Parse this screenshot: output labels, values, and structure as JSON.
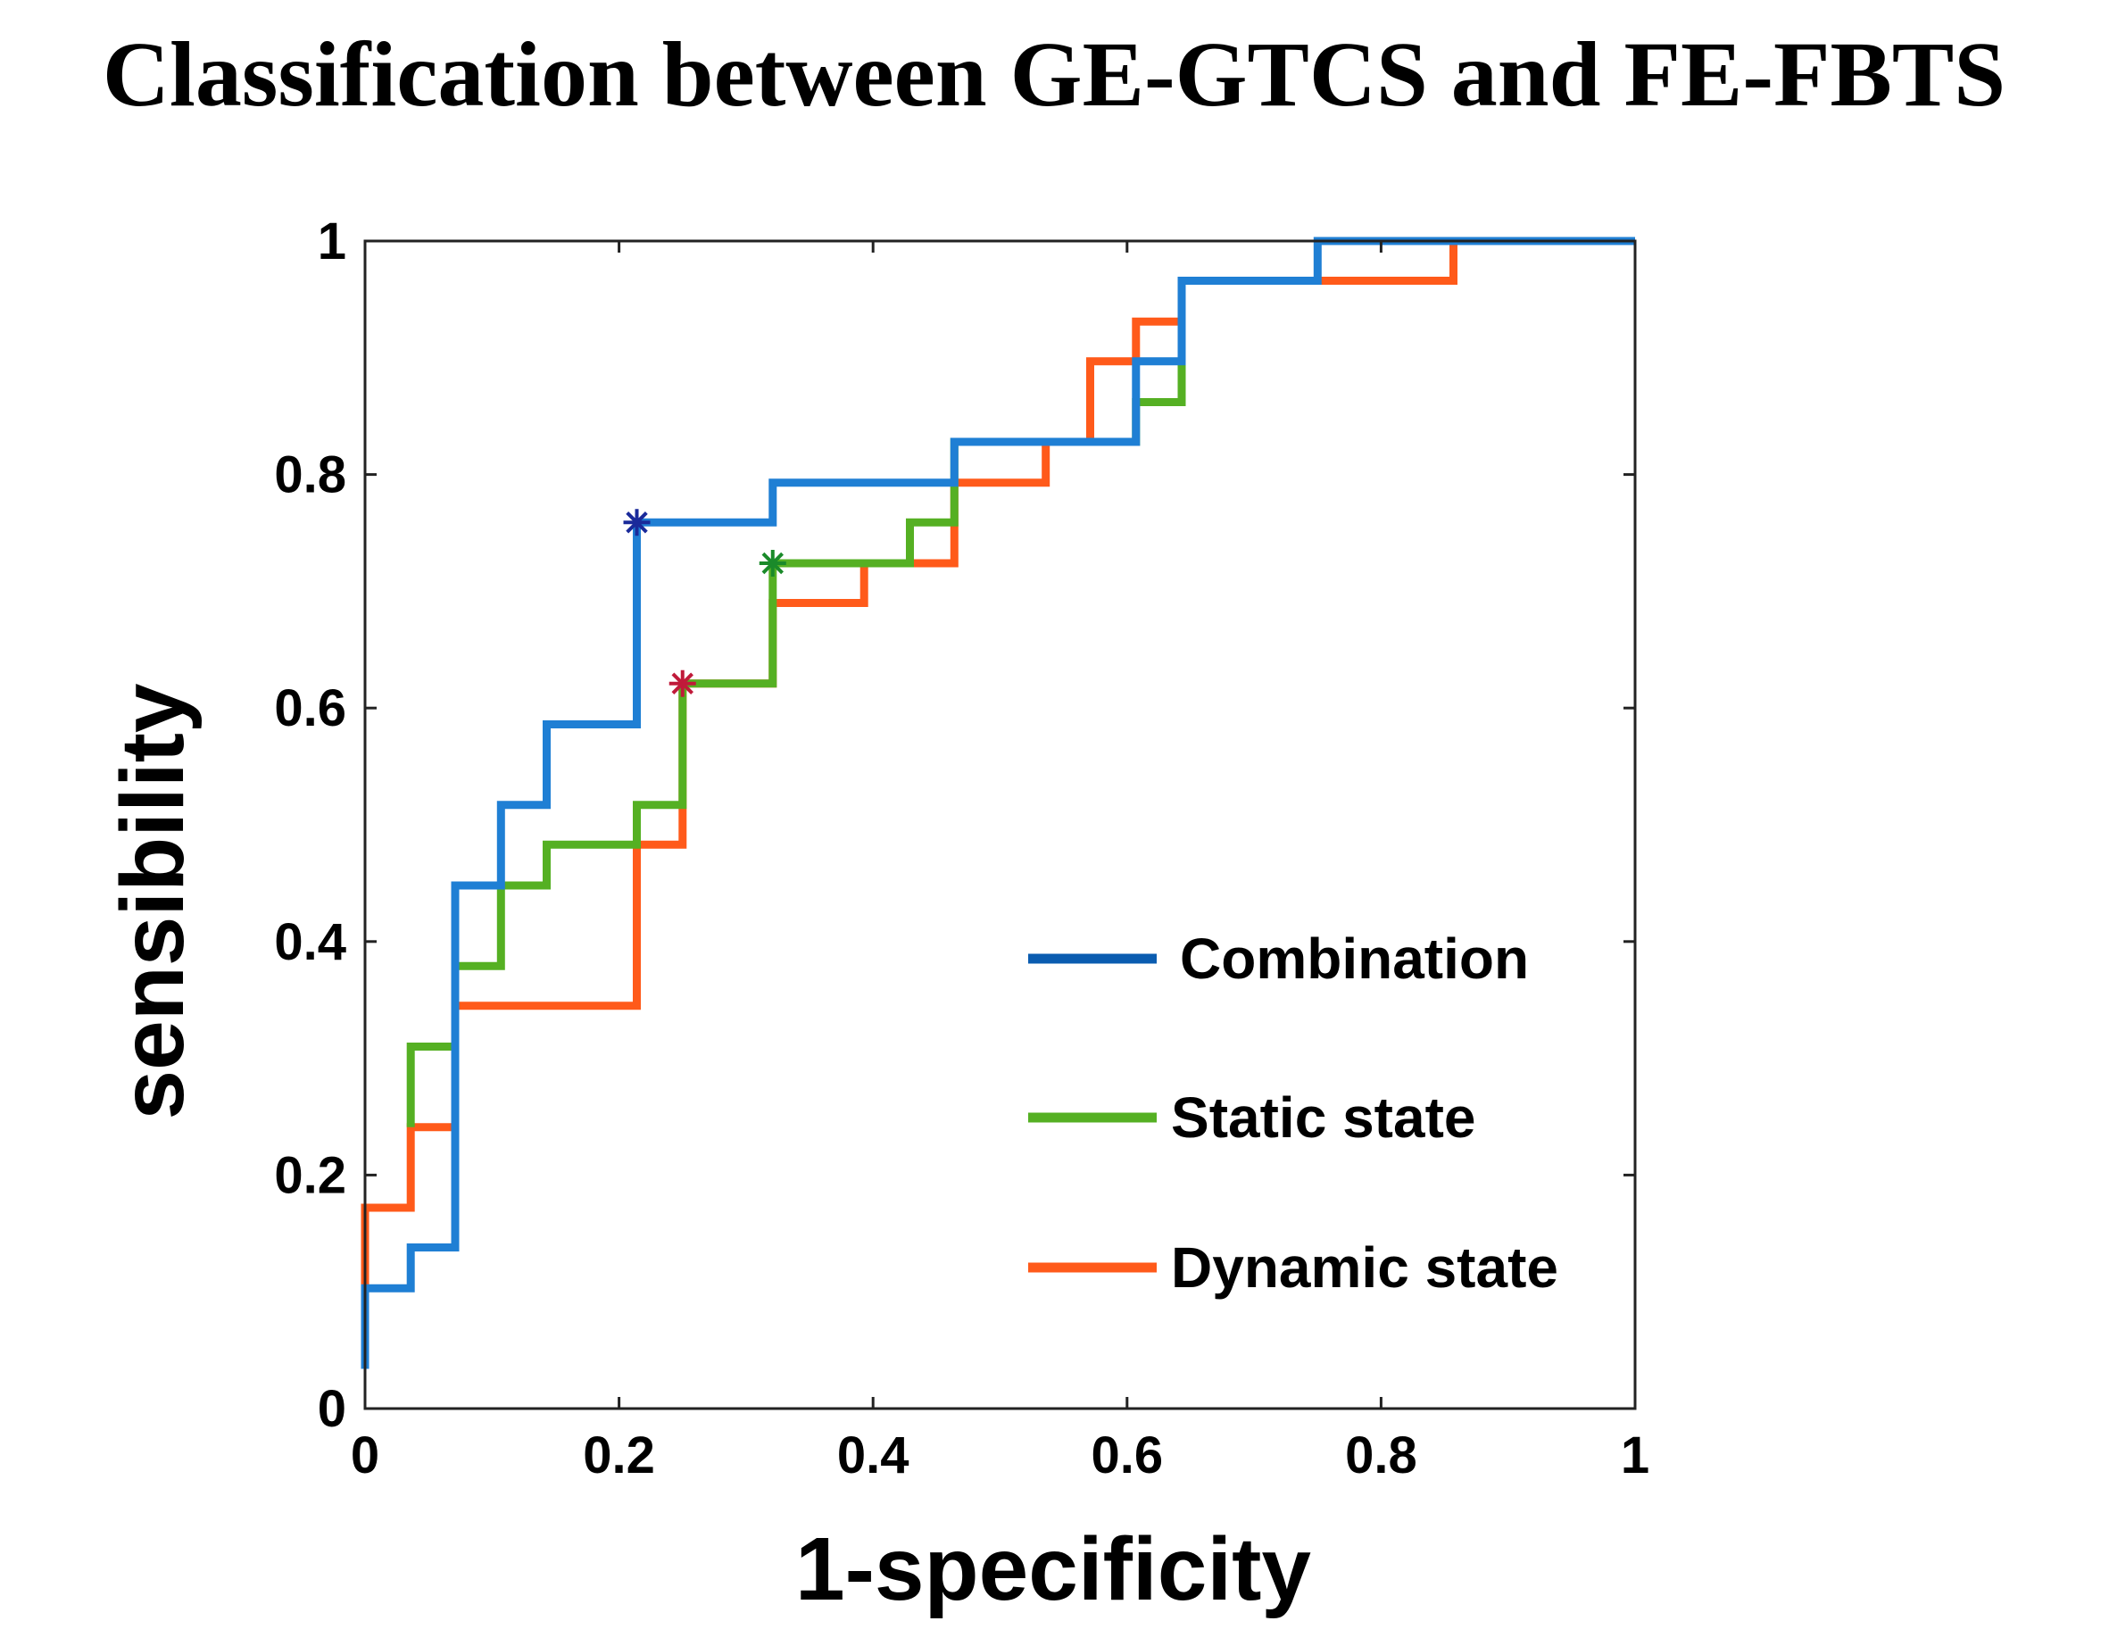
{
  "chart_data": {
    "type": "line",
    "title": "Classification between GE-GTCS and FE-FBTS",
    "xlabel": "1-specificity",
    "ylabel": "sensibility",
    "xlim": [
      0,
      1
    ],
    "ylim": [
      0,
      1
    ],
    "xticks": [
      0,
      0.2,
      0.4,
      0.6,
      0.8,
      1
    ],
    "yticks": [
      0,
      0.2,
      0.4,
      0.6,
      0.8,
      1
    ],
    "xtick_labels": [
      "0",
      "0.2",
      "0.4",
      "0.6",
      "0.8",
      "1"
    ],
    "ytick_labels": [
      "0",
      "0.2",
      "0.4",
      "0.6",
      "0.8",
      "1"
    ],
    "grid": false,
    "legend_position": "bottom-right",
    "series": [
      {
        "name": "Combination",
        "color": "#1f7fd4",
        "legend_color": "#0a5cb0",
        "marker_color": "#1a2a9a",
        "operating_point": [
          0.214,
          0.759
        ],
        "x": [
          0,
          0,
          0.036,
          0.036,
          0.071,
          0.071,
          0.107,
          0.107,
          0.143,
          0.143,
          0.214,
          0.214,
          0.321,
          0.321,
          0.464,
          0.464,
          0.607,
          0.607,
          0.643,
          0.643,
          0.75,
          0.75,
          1
        ],
        "y": [
          0.034,
          0.103,
          0.103,
          0.138,
          0.138,
          0.448,
          0.448,
          0.517,
          0.517,
          0.586,
          0.586,
          0.759,
          0.759,
          0.793,
          0.793,
          0.828,
          0.828,
          0.897,
          0.897,
          0.966,
          0.966,
          1,
          1
        ]
      },
      {
        "name": "Static state",
        "color": "#55b023",
        "legend_color": "#55b023",
        "marker_color": "#1a8a2a",
        "operating_point": [
          0.321,
          0.724
        ],
        "x": [
          0.036,
          0.036,
          0.071,
          0.071,
          0.107,
          0.107,
          0.143,
          0.143,
          0.214,
          0.214,
          0.25,
          0.25,
          0.321,
          0.321,
          0.429,
          0.429,
          0.464,
          0.464,
          0.607,
          0.607,
          0.643,
          0.643
        ],
        "y": [
          0.241,
          0.31,
          0.31,
          0.379,
          0.379,
          0.448,
          0.448,
          0.483,
          0.483,
          0.517,
          0.517,
          0.621,
          0.621,
          0.724,
          0.724,
          0.759,
          0.759,
          0.828,
          0.828,
          0.862,
          0.862,
          0.897
        ]
      },
      {
        "name": "Dynamic state",
        "color": "#ff5a1a",
        "legend_color": "#ff5a1a",
        "marker_color": "#c01a3a",
        "operating_point": [
          0.25,
          0.621
        ],
        "x": [
          0,
          0,
          0.036,
          0.036,
          0.071,
          0.071,
          0.214,
          0.214,
          0.25,
          0.25,
          0.321,
          0.321,
          0.393,
          0.393,
          0.464,
          0.464,
          0.536,
          0.536,
          0.571,
          0.571,
          0.607,
          0.607,
          0.643,
          0.643,
          0.75,
          0.75,
          0.857,
          0.857,
          1
        ],
        "y": [
          0.103,
          0.172,
          0.172,
          0.241,
          0.241,
          0.345,
          0.345,
          0.483,
          0.483,
          0.621,
          0.621,
          0.69,
          0.69,
          0.724,
          0.724,
          0.793,
          0.793,
          0.828,
          0.828,
          0.897,
          0.897,
          0.931,
          0.931,
          0.966,
          0.966,
          0.966,
          0.966,
          1,
          1
        ]
      }
    ]
  }
}
